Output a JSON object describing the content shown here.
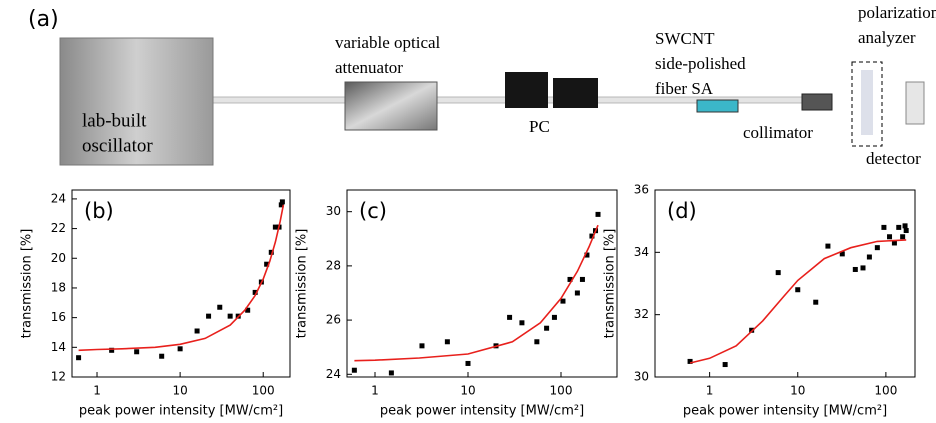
{
  "diagram": {
    "panel_label": "(a)",
    "oscillator": [
      "lab-built",
      "oscillator"
    ],
    "attenuator": [
      "variable optical",
      "attenuator"
    ],
    "pc": "PC",
    "sa": [
      "SWCNT",
      "side-polished",
      "fiber SA"
    ],
    "collimator": "collimator",
    "analyzer": [
      "polarization",
      "analyzer"
    ],
    "detector": "detector"
  },
  "chart_data": [
    {
      "type": "scatter",
      "label": "(b)",
      "x_label": "peak power intensity  [MW/cm²]",
      "y_label": "transmission [%]",
      "log_x": true,
      "xlim": [
        0.5,
        210
      ],
      "xticks": [
        1,
        10,
        100
      ],
      "ylim": [
        12,
        24.6
      ],
      "yticks": [
        12,
        14,
        16,
        18,
        20,
        22,
        24
      ],
      "series": [
        {
          "mode": "markers",
          "color": "#000000",
          "x": [
            0.6,
            1.5,
            3,
            6,
            10,
            16,
            22,
            30,
            40,
            50,
            65,
            80,
            95,
            110,
            125,
            140,
            155,
            165,
            170
          ],
          "values": [
            13.3,
            13.8,
            13.7,
            13.4,
            13.9,
            15.1,
            16.1,
            16.7,
            16.1,
            16.1,
            16.5,
            17.7,
            18.4,
            19.6,
            20.4,
            22.1,
            22.1,
            23.6,
            23.8
          ]
        },
        {
          "mode": "line",
          "color": "#e8201c",
          "x": [
            0.6,
            1,
            2,
            5,
            10,
            20,
            40,
            60,
            80,
            100,
            120,
            140,
            160,
            175
          ],
          "values": [
            13.8,
            13.85,
            13.9,
            14.0,
            14.2,
            14.6,
            15.5,
            16.5,
            17.5,
            18.6,
            19.8,
            21.1,
            22.5,
            23.6
          ]
        }
      ]
    },
    {
      "type": "scatter",
      "label": "(c)",
      "x_label": "peak power intensity  [MW/cm²]",
      "y_label": "transmission [%]",
      "log_x": true,
      "xlim": [
        0.5,
        400
      ],
      "xticks": [
        1,
        10,
        100
      ],
      "ylim": [
        23.9,
        30.8
      ],
      "yticks": [
        24,
        26,
        28,
        30
      ],
      "series": [
        {
          "mode": "markers",
          "color": "#000000",
          "x": [
            0.6,
            1.5,
            3.2,
            6,
            10,
            20,
            28,
            38,
            55,
            70,
            85,
            105,
            125,
            150,
            170,
            190,
            215,
            235,
            250
          ],
          "values": [
            24.15,
            24.05,
            25.05,
            25.2,
            24.4,
            25.05,
            26.1,
            25.9,
            25.2,
            25.7,
            26.1,
            26.7,
            27.5,
            27.0,
            27.5,
            28.4,
            29.1,
            29.3,
            29.9
          ]
        },
        {
          "mode": "line",
          "color": "#e8201c",
          "x": [
            0.6,
            1,
            3,
            10,
            30,
            60,
            100,
            150,
            200,
            250
          ],
          "values": [
            24.5,
            24.52,
            24.6,
            24.75,
            25.2,
            25.9,
            26.8,
            27.8,
            28.7,
            29.5
          ]
        }
      ]
    },
    {
      "type": "scatter",
      "label": "(d)",
      "x_label": "peak power intensity  [MW/cm²]",
      "y_label": "transmission [%]",
      "log_x": true,
      "xlim": [
        0.24,
        214
      ],
      "xticks": [
        1,
        10,
        100
      ],
      "ylim": [
        30,
        36
      ],
      "yticks": [
        30,
        32,
        34,
        36
      ],
      "series": [
        {
          "mode": "markers",
          "color": "#000000",
          "x": [
            0.6,
            1.5,
            3,
            6,
            10,
            16,
            22,
            32,
            45,
            55,
            65,
            80,
            95,
            110,
            125,
            140,
            155,
            165,
            170
          ],
          "values": [
            30.5,
            30.4,
            31.5,
            33.35,
            32.8,
            32.4,
            34.2,
            33.95,
            33.45,
            33.5,
            33.85,
            34.15,
            34.8,
            34.5,
            34.3,
            34.8,
            34.5,
            34.85,
            34.7
          ]
        },
        {
          "mode": "line",
          "color": "#e8201c",
          "x": [
            0.6,
            1,
            2,
            4,
            7,
            10,
            20,
            40,
            80,
            170
          ],
          "values": [
            30.45,
            30.6,
            31.0,
            31.8,
            32.6,
            33.1,
            33.8,
            34.15,
            34.35,
            34.4
          ]
        }
      ]
    }
  ]
}
